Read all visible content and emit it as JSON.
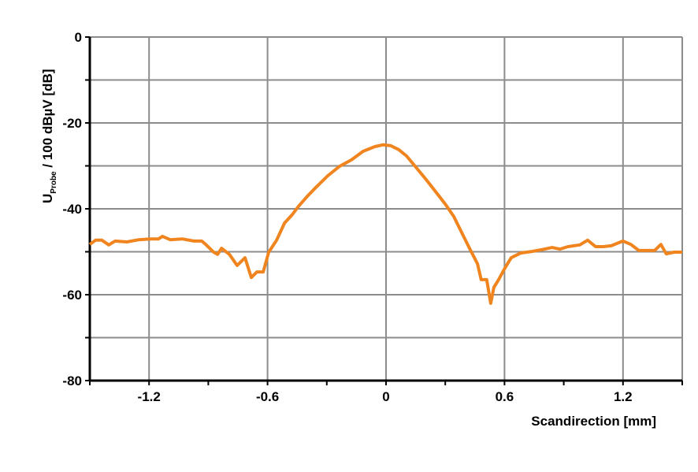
{
  "chart_data": {
    "type": "line",
    "title": "",
    "xlabel": "Scandirection [mm]",
    "ylabel_main": "U",
    "ylabel_sub": "Probe",
    "ylabel_rest": " / 100 dBµV [dB]",
    "xlim": [
      -1.5,
      1.5
    ],
    "ylim": [
      -80,
      0
    ],
    "xticks": [
      -1.2,
      -0.6,
      0,
      0.6,
      1.2
    ],
    "xtick_labels": [
      "-1.2",
      "-0.6",
      "0",
      "0.6",
      "1.2"
    ],
    "yticks": [
      0,
      -20,
      -40,
      -60,
      -80
    ],
    "ytick_labels": [
      "0",
      "-20",
      "-40",
      "-60",
      "-80"
    ],
    "grid": true,
    "line_color": "#f0841e",
    "series": [
      {
        "x": [
          -1.5,
          -1.471,
          -1.439,
          -1.404,
          -1.372,
          -1.312,
          -1.252,
          -1.192,
          -1.152,
          -1.132,
          -1.093,
          -1.033,
          -0.973,
          -0.933,
          -0.913,
          -0.873,
          -0.853,
          -0.833,
          -0.793,
          -0.754,
          -0.714,
          -0.682,
          -0.654,
          -0.622,
          -0.594,
          -0.554,
          -0.514,
          -0.474,
          -0.443,
          -0.395,
          -0.355,
          -0.295,
          -0.235,
          -0.175,
          -0.116,
          -0.056,
          -0.016,
          0.024,
          0.064,
          0.104,
          0.144,
          0.203,
          0.263,
          0.303,
          0.343,
          0.383,
          0.423,
          0.463,
          0.482,
          0.51,
          0.53,
          0.546,
          0.57,
          0.602,
          0.634,
          0.682,
          0.742,
          0.801,
          0.841,
          0.881,
          0.921,
          0.981,
          1.021,
          1.061,
          1.1,
          1.14,
          1.2,
          1.24,
          1.28,
          1.32,
          1.36,
          1.392,
          1.419,
          1.459,
          1.5
        ],
        "y": [
          -48.3,
          -47.3,
          -47.3,
          -48.4,
          -47.5,
          -47.7,
          -47.2,
          -47.0,
          -47.0,
          -46.4,
          -47.2,
          -47.0,
          -47.5,
          -47.5,
          -48.3,
          -50.1,
          -50.6,
          -49.2,
          -50.6,
          -53.2,
          -51.4,
          -56.0,
          -54.7,
          -54.7,
          -50.1,
          -47.3,
          -43.3,
          -41.3,
          -39.4,
          -36.9,
          -35.0,
          -32.3,
          -30.1,
          -28.6,
          -26.6,
          -25.5,
          -25.1,
          -25.3,
          -26.2,
          -27.7,
          -29.9,
          -33.2,
          -36.7,
          -39.1,
          -41.8,
          -45.5,
          -49.2,
          -52.8,
          -56.5,
          -56.5,
          -62.0,
          -58.3,
          -56.5,
          -53.8,
          -51.4,
          -50.3,
          -49.9,
          -49.4,
          -49.0,
          -49.4,
          -48.8,
          -48.4,
          -47.3,
          -48.8,
          -48.8,
          -48.6,
          -47.5,
          -48.3,
          -49.7,
          -49.7,
          -49.7,
          -48.3,
          -50.5,
          -50.1,
          -50.1
        ]
      }
    ]
  }
}
